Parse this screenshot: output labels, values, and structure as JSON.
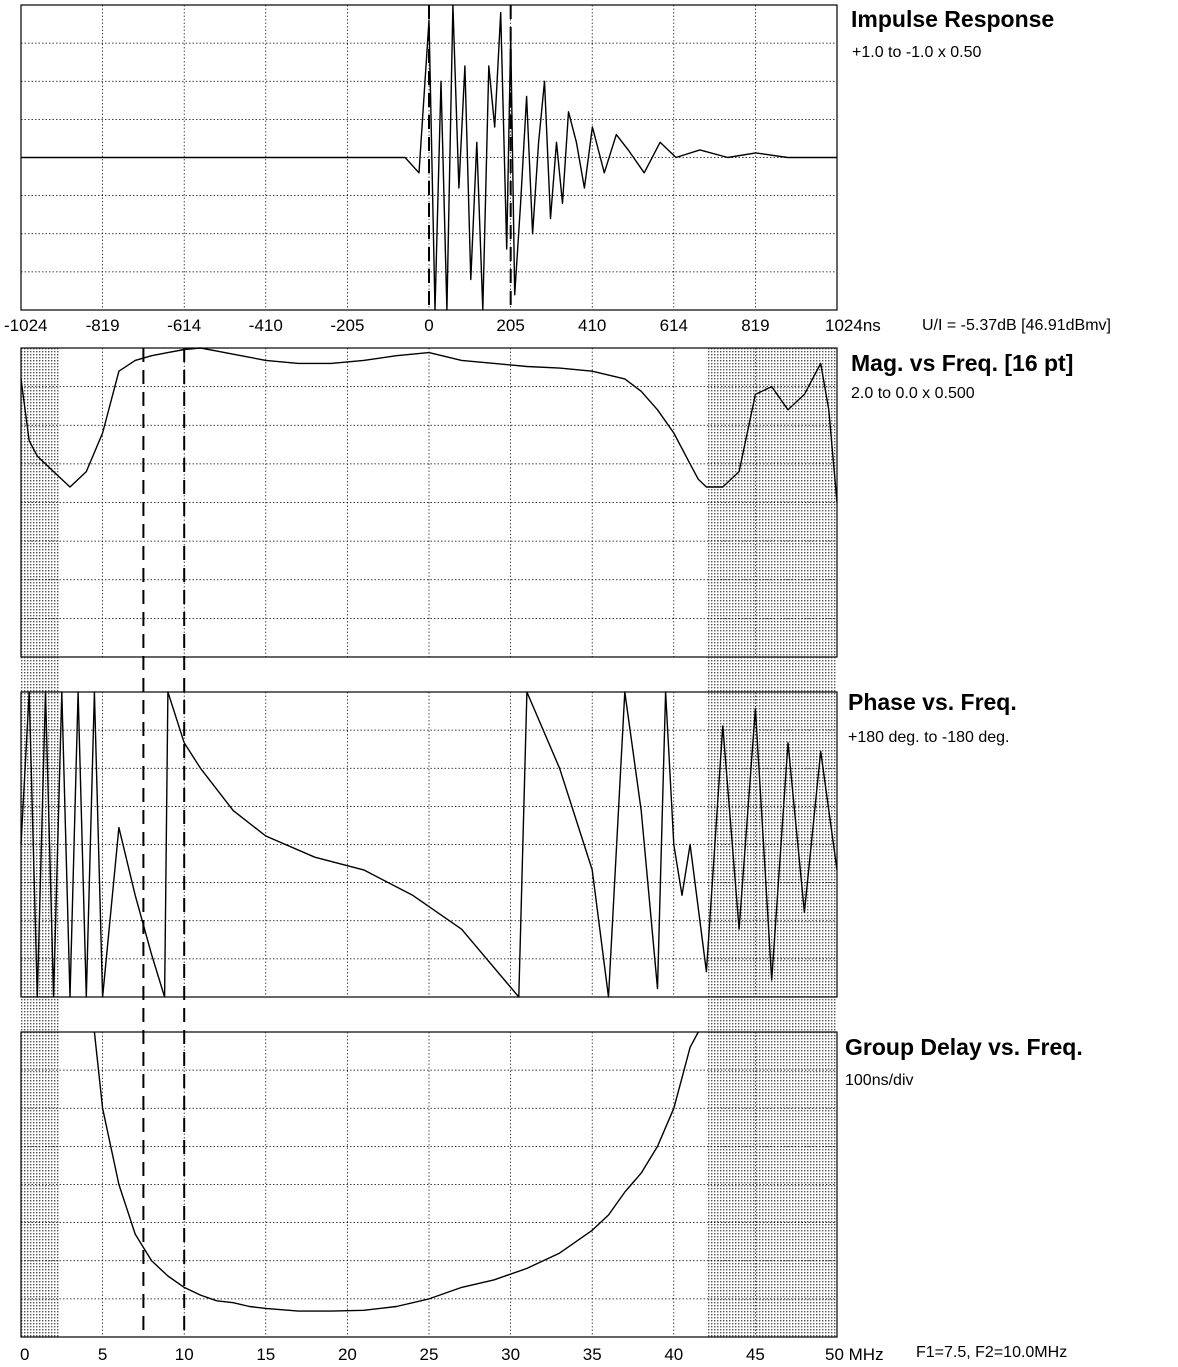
{
  "chart_data": [
    {
      "type": "line",
      "title": "Impulse Response",
      "subtitle": "+1.0 to -1.0 x 0.50",
      "x_tick_labels": [
        "-1024",
        "-819",
        "-614",
        "-410",
        "-205",
        "0",
        "205",
        "410",
        "614",
        "819",
        "1024ns"
      ],
      "xlim": [
        -1024,
        1024
      ],
      "ylim": [
        -1.0,
        1.0
      ],
      "markers_x": [
        0,
        205
      ],
      "annotation": "U/I = -5.37dB [46.91dBmv]",
      "grid": true,
      "series": [
        {
          "x": [
            -1024,
            -900,
            -600,
            -300,
            -60,
            -25,
            0,
            15,
            30,
            45,
            60,
            75,
            90,
            105,
            120,
            135,
            150,
            165,
            180,
            195,
            205,
            215,
            230,
            245,
            260,
            275,
            290,
            305,
            320,
            335,
            350,
            370,
            390,
            410,
            440,
            470,
            500,
            540,
            580,
            620,
            680,
            750,
            820,
            900,
            1000,
            1024
          ],
          "y": [
            0,
            0,
            0,
            0,
            0,
            -0.1,
            0.9,
            -1.2,
            0.5,
            -1.3,
            1.1,
            -0.2,
            0.6,
            -0.8,
            0.1,
            -1.1,
            0.6,
            0.2,
            0.95,
            -0.6,
            0.8,
            -0.9,
            -0.3,
            0.4,
            -0.5,
            0.1,
            0.5,
            -0.4,
            0.1,
            -0.3,
            0.3,
            0.1,
            -0.2,
            0.2,
            -0.1,
            0.15,
            0.05,
            -0.1,
            0.1,
            0,
            0.05,
            0,
            0.03,
            0,
            0,
            0
          ]
        }
      ]
    },
    {
      "type": "line",
      "title": "Mag. vs Freq. [16 pt]",
      "subtitle": "2.0 to 0.0 x 0.500",
      "x_tick_labels": [
        "0",
        "5",
        "10",
        "15",
        "20",
        "25",
        "30",
        "35",
        "40",
        "45",
        "50 MHz"
      ],
      "xlim": [
        0,
        50
      ],
      "ylim": [
        0,
        2.0
      ],
      "markers_x": [
        7.5,
        10.0
      ],
      "grid": true,
      "series": [
        {
          "x": [
            0,
            0.5,
            1,
            2,
            3,
            4,
            5,
            6,
            7,
            8,
            9,
            10,
            11,
            12,
            13,
            15,
            17,
            19,
            21,
            23,
            25,
            27,
            29,
            31,
            33,
            35,
            37,
            38,
            39,
            40,
            41,
            41.5,
            42,
            43,
            44,
            45,
            46,
            47,
            48,
            49,
            49.5,
            50
          ],
          "y": [
            1.8,
            1.4,
            1.3,
            1.2,
            1.1,
            1.2,
            1.45,
            1.85,
            1.92,
            1.95,
            1.97,
            1.99,
            2.0,
            1.98,
            1.96,
            1.92,
            1.9,
            1.9,
            1.92,
            1.95,
            1.97,
            1.92,
            1.9,
            1.88,
            1.87,
            1.85,
            1.8,
            1.72,
            1.6,
            1.45,
            1.25,
            1.15,
            1.1,
            1.1,
            1.2,
            1.7,
            1.75,
            1.6,
            1.7,
            1.9,
            1.6,
            1.0
          ]
        }
      ]
    },
    {
      "type": "line",
      "title": "Phase vs. Freq.",
      "subtitle": "+180 deg. to -180 deg.",
      "x_tick_labels": [
        "0",
        "5",
        "10",
        "15",
        "20",
        "25",
        "30",
        "35",
        "40",
        "45",
        "50 MHz"
      ],
      "xlim": [
        0,
        50
      ],
      "ylim": [
        -180,
        180
      ],
      "markers_x": [
        7.5,
        10.0
      ],
      "grid": true,
      "series": [
        {
          "x": [
            0,
            0.5,
            1,
            1.5,
            2,
            2.5,
            3,
            3.5,
            4,
            4.5,
            5,
            6,
            7,
            8,
            8.8,
            9,
            10,
            11,
            13,
            15,
            18,
            21,
            24,
            27,
            30.5,
            31,
            33,
            35,
            36,
            37,
            38,
            39,
            39.5,
            40,
            40.5,
            41,
            42,
            43,
            44,
            45,
            46,
            47,
            48,
            49,
            50
          ],
          "y": [
            0,
            180,
            -180,
            180,
            -180,
            180,
            -180,
            180,
            -180,
            180,
            -180,
            20,
            -60,
            -130,
            -180,
            180,
            120,
            90,
            40,
            10,
            -15,
            -30,
            -60,
            -100,
            -180,
            180,
            90,
            -30,
            -180,
            180,
            40,
            -170,
            180,
            0,
            -60,
            0,
            -150,
            140,
            -100,
            160,
            -160,
            120,
            -80,
            110,
            -30
          ]
        }
      ]
    },
    {
      "type": "line",
      "title": "Group Delay vs. Freq.",
      "subtitle": "100ns/div",
      "x_tick_labels": [
        "0",
        "5",
        "10",
        "15",
        "20",
        "25",
        "30",
        "35",
        "40",
        "45",
        "50 MHz"
      ],
      "xlim": [
        0,
        50
      ],
      "ylim": [
        0,
        800
      ],
      "markers_x": [
        7.5,
        10.0
      ],
      "grid": true,
      "annotation": "F1=7.5, F2=10.0MHz",
      "series": [
        {
          "x": [
            4.5,
            5,
            6,
            7,
            8,
            9,
            10,
            11,
            12,
            13,
            14,
            15,
            17,
            19,
            21,
            23,
            25,
            27,
            29,
            31,
            33,
            35,
            36,
            37,
            38,
            39,
            40,
            40.5,
            41,
            41.5
          ],
          "y": [
            800,
            600,
            400,
            270,
            200,
            160,
            130,
            110,
            95,
            90,
            80,
            75,
            68,
            68,
            70,
            80,
            100,
            130,
            150,
            180,
            220,
            280,
            320,
            380,
            430,
            500,
            600,
            680,
            760,
            800
          ]
        }
      ]
    }
  ],
  "shading": {
    "freq_bands": [
      [
        0,
        2.3
      ],
      [
        42,
        50
      ]
    ]
  }
}
